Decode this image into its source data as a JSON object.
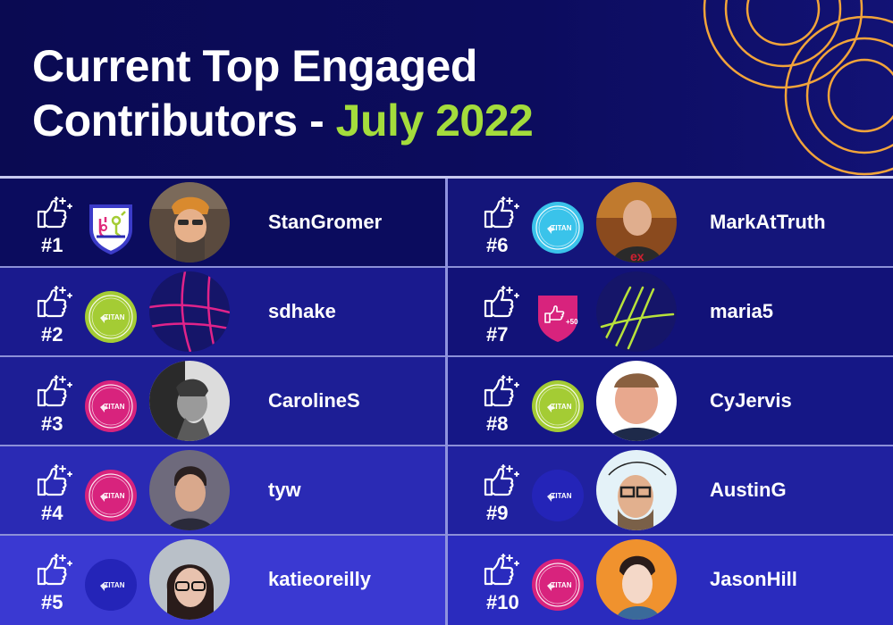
{
  "header": {
    "title_line1": "Current Top Engaged",
    "title_line2_prefix": "Contributors - ",
    "title_line2_accent": "July 2022"
  },
  "colors": {
    "background": "#0a0b55",
    "accent_green": "#a4dc3c",
    "ring_orange": "#f2a43a",
    "titan_magenta": "#d8237d",
    "titan_cyan": "#3ac3ea",
    "titan_lime": "#a4cc34"
  },
  "contributors": [
    {
      "rank": "#1",
      "name": "StanGromer",
      "badge": "shield-badge"
    },
    {
      "rank": "#2",
      "name": "sdhake",
      "badge": "titan-lime"
    },
    {
      "rank": "#3",
      "name": "CarolineS",
      "badge": "titan-magenta"
    },
    {
      "rank": "#4",
      "name": "tyw",
      "badge": "titan-magenta"
    },
    {
      "rank": "#5",
      "name": "katieoreilly",
      "badge": "titan-blue"
    },
    {
      "rank": "#6",
      "name": "MarkAtTruth",
      "badge": "titan-cyan"
    },
    {
      "rank": "#7",
      "name": "maria5",
      "badge": "plus50-badge"
    },
    {
      "rank": "#8",
      "name": "CyJervis",
      "badge": "titan-lime"
    },
    {
      "rank": "#9",
      "name": "AustinG",
      "badge": "titan-blue"
    },
    {
      "rank": "#10",
      "name": "JasonHill",
      "badge": "titan-magenta"
    }
  ],
  "badge_text": {
    "titan": "TITAN",
    "plus50": "+50"
  },
  "icons": {
    "hand": "thumbs-up-sparkle-icon"
  }
}
